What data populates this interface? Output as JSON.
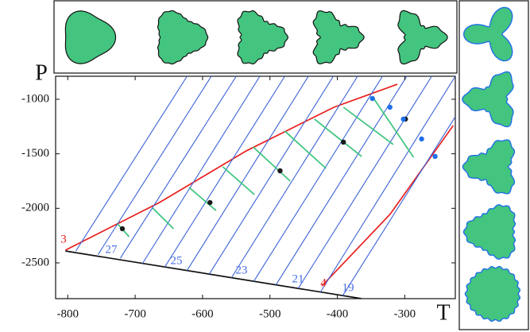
{
  "chart_data": {
    "type": "line",
    "xlabel": "T",
    "ylabel": "P",
    "xlim": [
      -818,
      -225
    ],
    "ylim": [
      -2828,
      -789
    ],
    "xticks": [
      -800,
      -700,
      -600,
      -500,
      -400,
      -300
    ],
    "yticks": [
      -1000,
      -1500,
      -2000,
      -2500
    ],
    "series": [
      {
        "color": "#e8201e",
        "label": "3",
        "mode": "line",
        "x": [
          -803.5,
          -664,
          -535,
          -405,
          -311
        ],
        "values": [
          -2384,
          -1947,
          -1473,
          -1073,
          -862
        ]
      },
      {
        "color": "#e8201e",
        "label": "4",
        "mode": "line",
        "x": [
          -423,
          -322,
          -228
        ],
        "values": [
          -2712,
          -2056,
          -1240
        ]
      },
      {
        "color": "#111111",
        "mode": "line",
        "x": [
          -803.5,
          -364
        ],
        "values": [
          -2391,
          -2828
        ]
      },
      {
        "color": "#3b63d8",
        "mode": "line",
        "x": [
          -788,
          -623
        ],
        "values": [
          -2391,
          -789
        ]
      },
      {
        "color": "#3b63d8",
        "label": "27",
        "mode": "line",
        "x": [
          -755,
          -587
        ],
        "values": [
          -2424,
          -789
        ]
      },
      {
        "color": "#3b63d8",
        "mode": "line",
        "x": [
          -722,
          -550
        ],
        "values": [
          -2457,
          -789
        ]
      },
      {
        "color": "#3b63d8",
        "mode": "line",
        "x": [
          -689,
          -515
        ],
        "values": [
          -2505,
          -789
        ]
      },
      {
        "color": "#3b63d8",
        "label": "25",
        "mode": "line",
        "x": [
          -656,
          -478
        ],
        "values": [
          -2537,
          -789
        ]
      },
      {
        "color": "#3b63d8",
        "mode": "line",
        "x": [
          -623,
          -443
        ],
        "values": [
          -2570,
          -789
        ]
      },
      {
        "color": "#3b63d8",
        "label": "23",
        "mode": "line",
        "x": [
          -590,
          -406
        ],
        "values": [
          -2603,
          -789
        ]
      },
      {
        "color": "#3b63d8",
        "mode": "line",
        "x": [
          -557,
          -370
        ],
        "values": [
          -2636,
          -789
        ]
      },
      {
        "color": "#3b63d8",
        "label": "21",
        "mode": "line",
        "x": [
          -524,
          -333
        ],
        "values": [
          -2669,
          -789
        ]
      },
      {
        "color": "#3b63d8",
        "mode": "line",
        "x": [
          -491,
          -297
        ],
        "values": [
          -2701,
          -789
        ]
      },
      {
        "color": "#3b63d8",
        "mode": "line",
        "x": [
          -458,
          -260
        ],
        "values": [
          -2734,
          -789
        ]
      },
      {
        "color": "#3b63d8",
        "label": "19",
        "mode": "line",
        "x": [
          -425,
          -225
        ],
        "values": [
          -2767,
          -789
        ]
      },
      {
        "color": "#3b63d8",
        "mode": "line",
        "x": [
          -392,
          -225
        ],
        "values": [
          -2800,
          -1160
        ]
      },
      {
        "color": "#3cc47c",
        "mode": "line",
        "x": [
          -726,
          -709
        ],
        "values": [
          -2143,
          -2260
        ]
      },
      {
        "color": "#3cc47c",
        "mode": "line",
        "x": [
          -674,
          -643
        ],
        "values": [
          -1998,
          -2187
        ]
      },
      {
        "color": "#3cc47c",
        "mode": "line",
        "x": [
          -620,
          -580
        ],
        "values": [
          -1808,
          -2020
        ]
      },
      {
        "color": "#3cc47c",
        "mode": "line",
        "x": [
          -570,
          -523
        ],
        "values": [
          -1619,
          -1874
        ]
      },
      {
        "color": "#3cc47c",
        "mode": "line",
        "x": [
          -525,
          -470
        ],
        "values": [
          -1437,
          -1750
        ]
      },
      {
        "color": "#3cc47c",
        "mode": "line",
        "x": [
          -478,
          -417
        ],
        "values": [
          -1291,
          -1634
        ]
      },
      {
        "color": "#3cc47c",
        "mode": "line",
        "x": [
          -434,
          -364
        ],
        "values": [
          -1182,
          -1524
        ]
      },
      {
        "color": "#3cc47c",
        "mode": "line",
        "x": [
          -391,
          -317
        ],
        "values": [
          -1073,
          -1415
        ]
      },
      {
        "color": "#3cc47c",
        "mode": "line",
        "x": [
          -346,
          -287
        ],
        "values": [
          -993,
          -1532
        ]
      },
      {
        "color": "#1a1a1a",
        "mode": "markers",
        "x": [
          -719,
          -589,
          -485,
          -391,
          -299
        ],
        "values": [
          -2187,
          -1947,
          -1656,
          -1393,
          -1182
        ]
      },
      {
        "color": "#1f6fe8",
        "mode": "markers",
        "x": [
          -348,
          -322,
          -302,
          -275,
          -255
        ],
        "values": [
          -993,
          -1073,
          -1182,
          -1364,
          -1524
        ]
      }
    ]
  }
}
